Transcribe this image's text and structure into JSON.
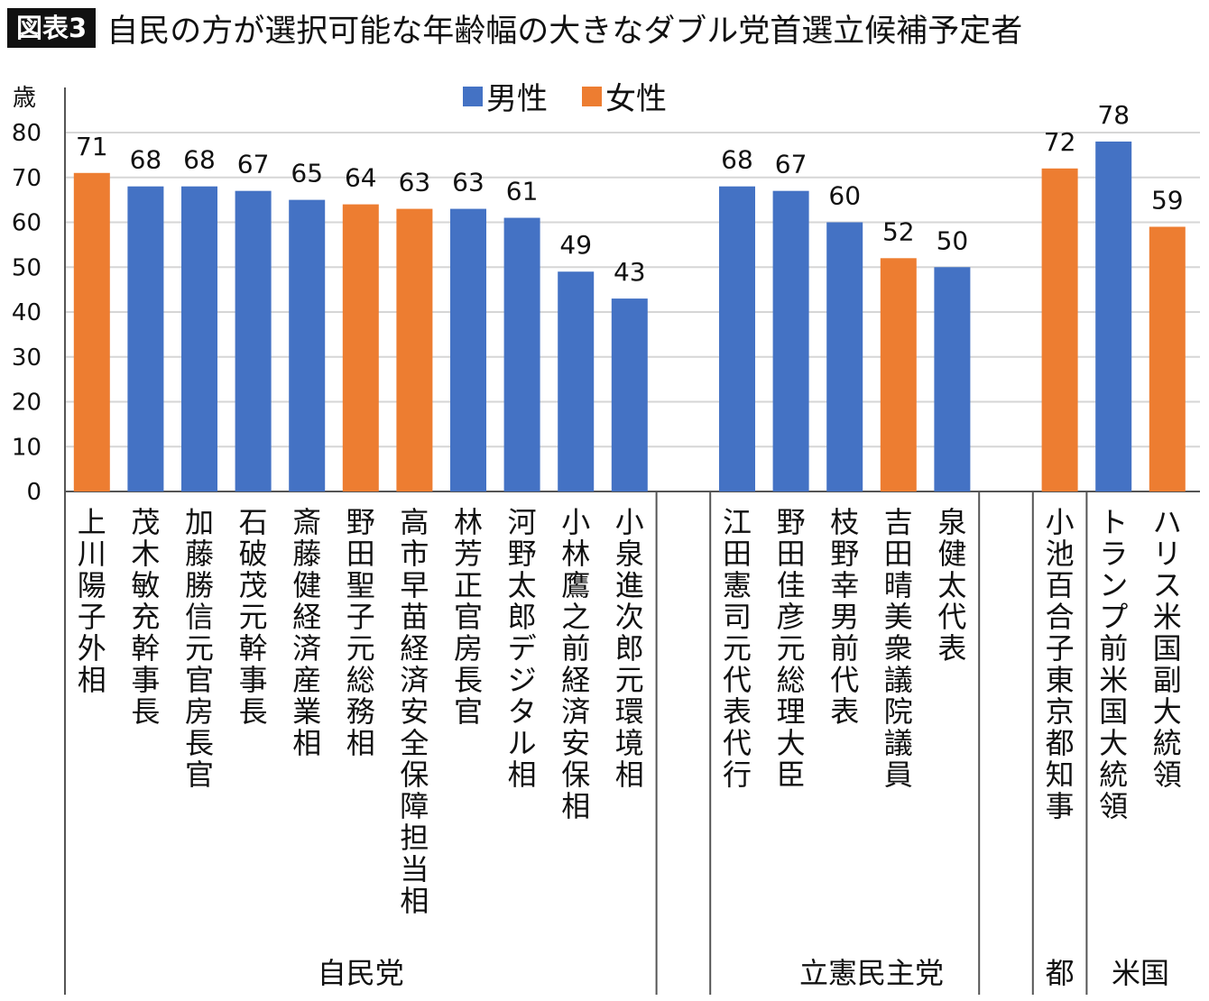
{
  "header": {
    "badge": "図表3",
    "title": "自民の方が選択可能な年齢幅の大きなダブル党首選立候補予定者"
  },
  "chart_data": {
    "type": "bar",
    "unit_label": "歳",
    "ylim": [
      0,
      80
    ],
    "yticks": [
      0,
      10,
      20,
      30,
      40,
      50,
      60,
      70,
      80
    ],
    "grid": true,
    "legend_position": "top",
    "series_colors": {
      "男性": "#4472c4",
      "女性": "#ed7d31"
    },
    "legend": [
      {
        "name": "男性",
        "color": "#4472c4"
      },
      {
        "name": "女性",
        "color": "#ed7d31"
      }
    ],
    "groups": [
      {
        "name": "自民党",
        "items": [
          {
            "label": "上川陽子外相",
            "value": 71,
            "gender": "女性"
          },
          {
            "label": "茂木敏充幹事長",
            "value": 68,
            "gender": "男性"
          },
          {
            "label": "加藤勝信元官房長官",
            "value": 68,
            "gender": "男性"
          },
          {
            "label": "石破茂元幹事長",
            "value": 67,
            "gender": "男性"
          },
          {
            "label": "斎藤健経済産業相",
            "value": 65,
            "gender": "男性"
          },
          {
            "label": "野田聖子元総務相",
            "value": 64,
            "gender": "女性"
          },
          {
            "label": "高市早苗経済安全保障担当相",
            "value": 63,
            "gender": "女性"
          },
          {
            "label": "林芳正官房長官",
            "value": 63,
            "gender": "男性"
          },
          {
            "label": "河野太郎デジタル相",
            "value": 61,
            "gender": "男性"
          },
          {
            "label": "小林鷹之前経済安保相",
            "value": 49,
            "gender": "男性"
          },
          {
            "label": "小泉進次郎元環境相",
            "value": 43,
            "gender": "男性"
          }
        ]
      },
      {
        "name": "立憲民主党",
        "items": [
          {
            "label": "江田憲司元代表代行",
            "value": 68,
            "gender": "男性"
          },
          {
            "label": "野田佳彦元総理大臣",
            "value": 67,
            "gender": "男性"
          },
          {
            "label": "枝野幸男前代表",
            "value": 60,
            "gender": "男性"
          },
          {
            "label": "吉田晴美衆議院議員",
            "value": 52,
            "gender": "女性"
          },
          {
            "label": "泉健太代表",
            "value": 50,
            "gender": "男性"
          }
        ]
      },
      {
        "name": "都",
        "items": [
          {
            "label": "小池百合子東京都知事",
            "value": 72,
            "gender": "女性"
          }
        ]
      },
      {
        "name": "米国",
        "items": [
          {
            "label": "トランプ前米国大統領",
            "value": 78,
            "gender": "男性"
          },
          {
            "label": "ハリス米国副大統領",
            "value": 59,
            "gender": "女性"
          }
        ]
      }
    ]
  }
}
